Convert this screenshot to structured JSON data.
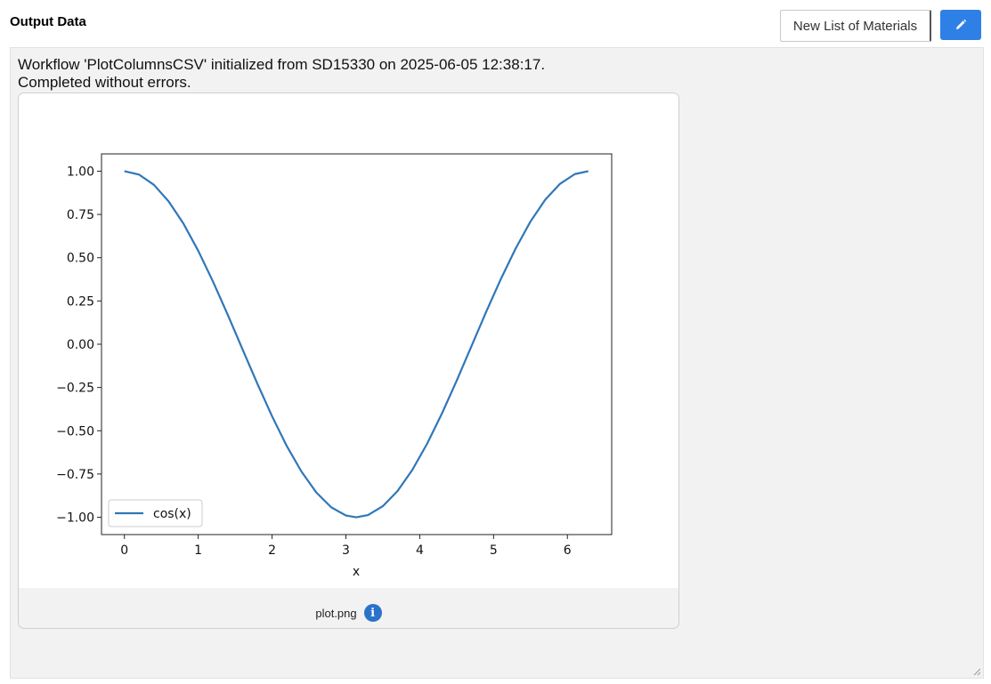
{
  "header": {
    "title": "Output Data",
    "materials_button": "New List of Materials",
    "edit_icon": "pencil-icon",
    "accent_color": "#2f80e6"
  },
  "output": {
    "status_line1": "Workflow 'PlotColumnsCSV' initialized from SD15330 on 2025-06-05 12:38:17.",
    "status_line2": "Completed without errors.",
    "file_name": "plot.png",
    "info_icon": "info-icon",
    "info_glyph": "i"
  },
  "chart_data": {
    "type": "line",
    "title": "",
    "xlabel": "x",
    "ylabel": "",
    "xlim": [
      -0.31,
      6.6
    ],
    "ylim": [
      -1.1,
      1.1
    ],
    "xticks": [
      0,
      1,
      2,
      3,
      4,
      5,
      6
    ],
    "yticks": [
      1.0,
      0.75,
      0.5,
      0.25,
      0.0,
      -0.25,
      -0.5,
      -0.75,
      -1.0
    ],
    "ytick_labels": [
      "1.00",
      "0.75",
      "0.50",
      "0.25",
      "0.00",
      "−0.25",
      "−0.50",
      "−0.75",
      "−1.00"
    ],
    "grid": false,
    "legend_position": "lower-left",
    "series": [
      {
        "name": "cos(x)",
        "color": "#2f77b8",
        "x": [
          0,
          0.2,
          0.4,
          0.6,
          0.8,
          1.0,
          1.2,
          1.4,
          1.6,
          1.8,
          2.0,
          2.2,
          2.4,
          2.6,
          2.8,
          3.0,
          3.1416,
          3.3,
          3.5,
          3.7,
          3.9,
          4.1,
          4.3,
          4.5,
          4.7,
          4.9,
          5.1,
          5.3,
          5.5,
          5.7,
          5.9,
          6.1,
          6.2832
        ],
        "y": [
          1.0,
          0.98,
          0.921,
          0.825,
          0.697,
          0.54,
          0.362,
          0.17,
          -0.029,
          -0.227,
          -0.416,
          -0.589,
          -0.737,
          -0.857,
          -0.942,
          -0.99,
          -1.0,
          -0.987,
          -0.936,
          -0.848,
          -0.726,
          -0.575,
          -0.401,
          -0.211,
          -0.012,
          0.187,
          0.378,
          0.554,
          0.709,
          0.835,
          0.927,
          0.983,
          1.0
        ]
      }
    ]
  }
}
